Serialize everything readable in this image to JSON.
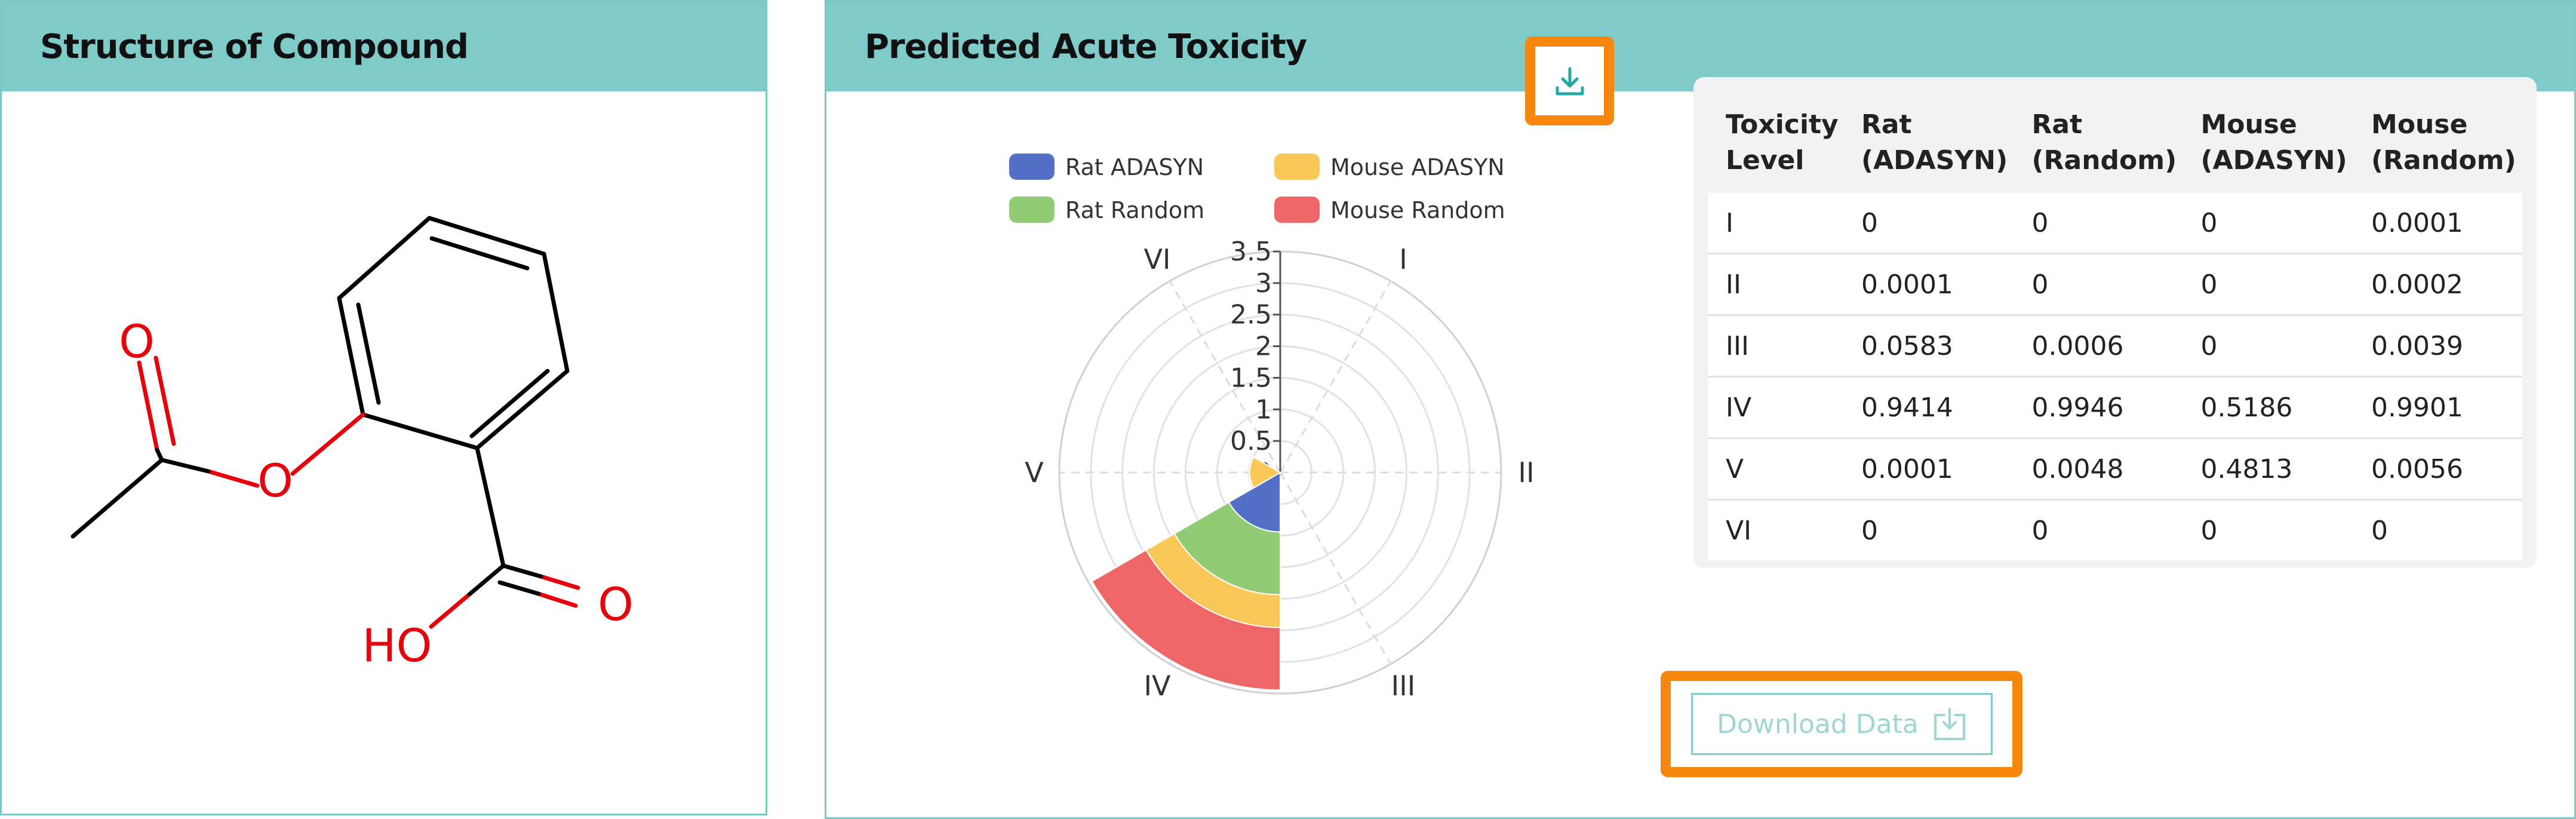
{
  "structure_panel": {
    "title": "Structure of Compound"
  },
  "molecule": {
    "atom_labels": {
      "carbonyl_oxygen_ester": "O",
      "ester_oxygen": "O",
      "carbonyl_oxygen_acid": "O",
      "hydroxyl": "HO"
    },
    "colors": {
      "bond": "#000000",
      "heteroatom": "#e8000b"
    }
  },
  "toxicity_panel": {
    "title": "Predicted Acute Toxicity",
    "download_icon_button": {
      "icon": "download-icon",
      "color": "#20a9a6"
    },
    "download_data_button": {
      "label": "Download Data",
      "icon": "download-tray-icon",
      "color": "#9fd6d4"
    },
    "highlight_color": "#f7870f",
    "table": {
      "headers": [
        [
          "Toxicity",
          "Level"
        ],
        [
          "Rat",
          "(ADASYN)"
        ],
        [
          "Rat",
          "(Random)"
        ],
        [
          "Mouse",
          "(ADASYN)"
        ],
        [
          "Mouse",
          "(Random)"
        ]
      ],
      "rows": [
        [
          "I",
          "0",
          "0",
          "0",
          "0.0001"
        ],
        [
          "II",
          "0.0001",
          "0",
          "0",
          "0.0002"
        ],
        [
          "III",
          "0.0583",
          "0.0006",
          "0",
          "0.0039"
        ],
        [
          "IV",
          "0.9414",
          "0.9946",
          "0.5186",
          "0.9901"
        ],
        [
          "V",
          "0.0001",
          "0.0048",
          "0.4813",
          "0.0056"
        ],
        [
          "VI",
          "0",
          "0",
          "0",
          "0"
        ]
      ]
    }
  },
  "chart_data": {
    "type": "stacked-polar-bar",
    "categories": [
      "I",
      "II",
      "III",
      "IV",
      "V",
      "VI"
    ],
    "category_angles_deg": [
      30,
      90,
      150,
      210,
      270,
      330
    ],
    "radial_ticks": [
      "0",
      "0.5",
      "1",
      "1.5",
      "2",
      "2.5",
      "3",
      "3.5"
    ],
    "rmax": 3.5,
    "legend_position": "top",
    "series": [
      {
        "name": "Rat ADASYN",
        "color": "#5470c6",
        "values": [
          0,
          0.0001,
          0.0583,
          0.9414,
          0.0001,
          0
        ]
      },
      {
        "name": "Rat Random",
        "color": "#91cc75",
        "values": [
          0,
          0,
          0.0006,
          0.9946,
          0.0048,
          0
        ]
      },
      {
        "name": "Mouse ADASYN",
        "color": "#fac858",
        "values": [
          0,
          0,
          0,
          0.5186,
          0.4813,
          0
        ]
      },
      {
        "name": "Mouse Random",
        "color": "#ee6666",
        "values": [
          0.0001,
          0.0002,
          0.0039,
          0.9901,
          0.0056,
          0
        ]
      }
    ]
  }
}
